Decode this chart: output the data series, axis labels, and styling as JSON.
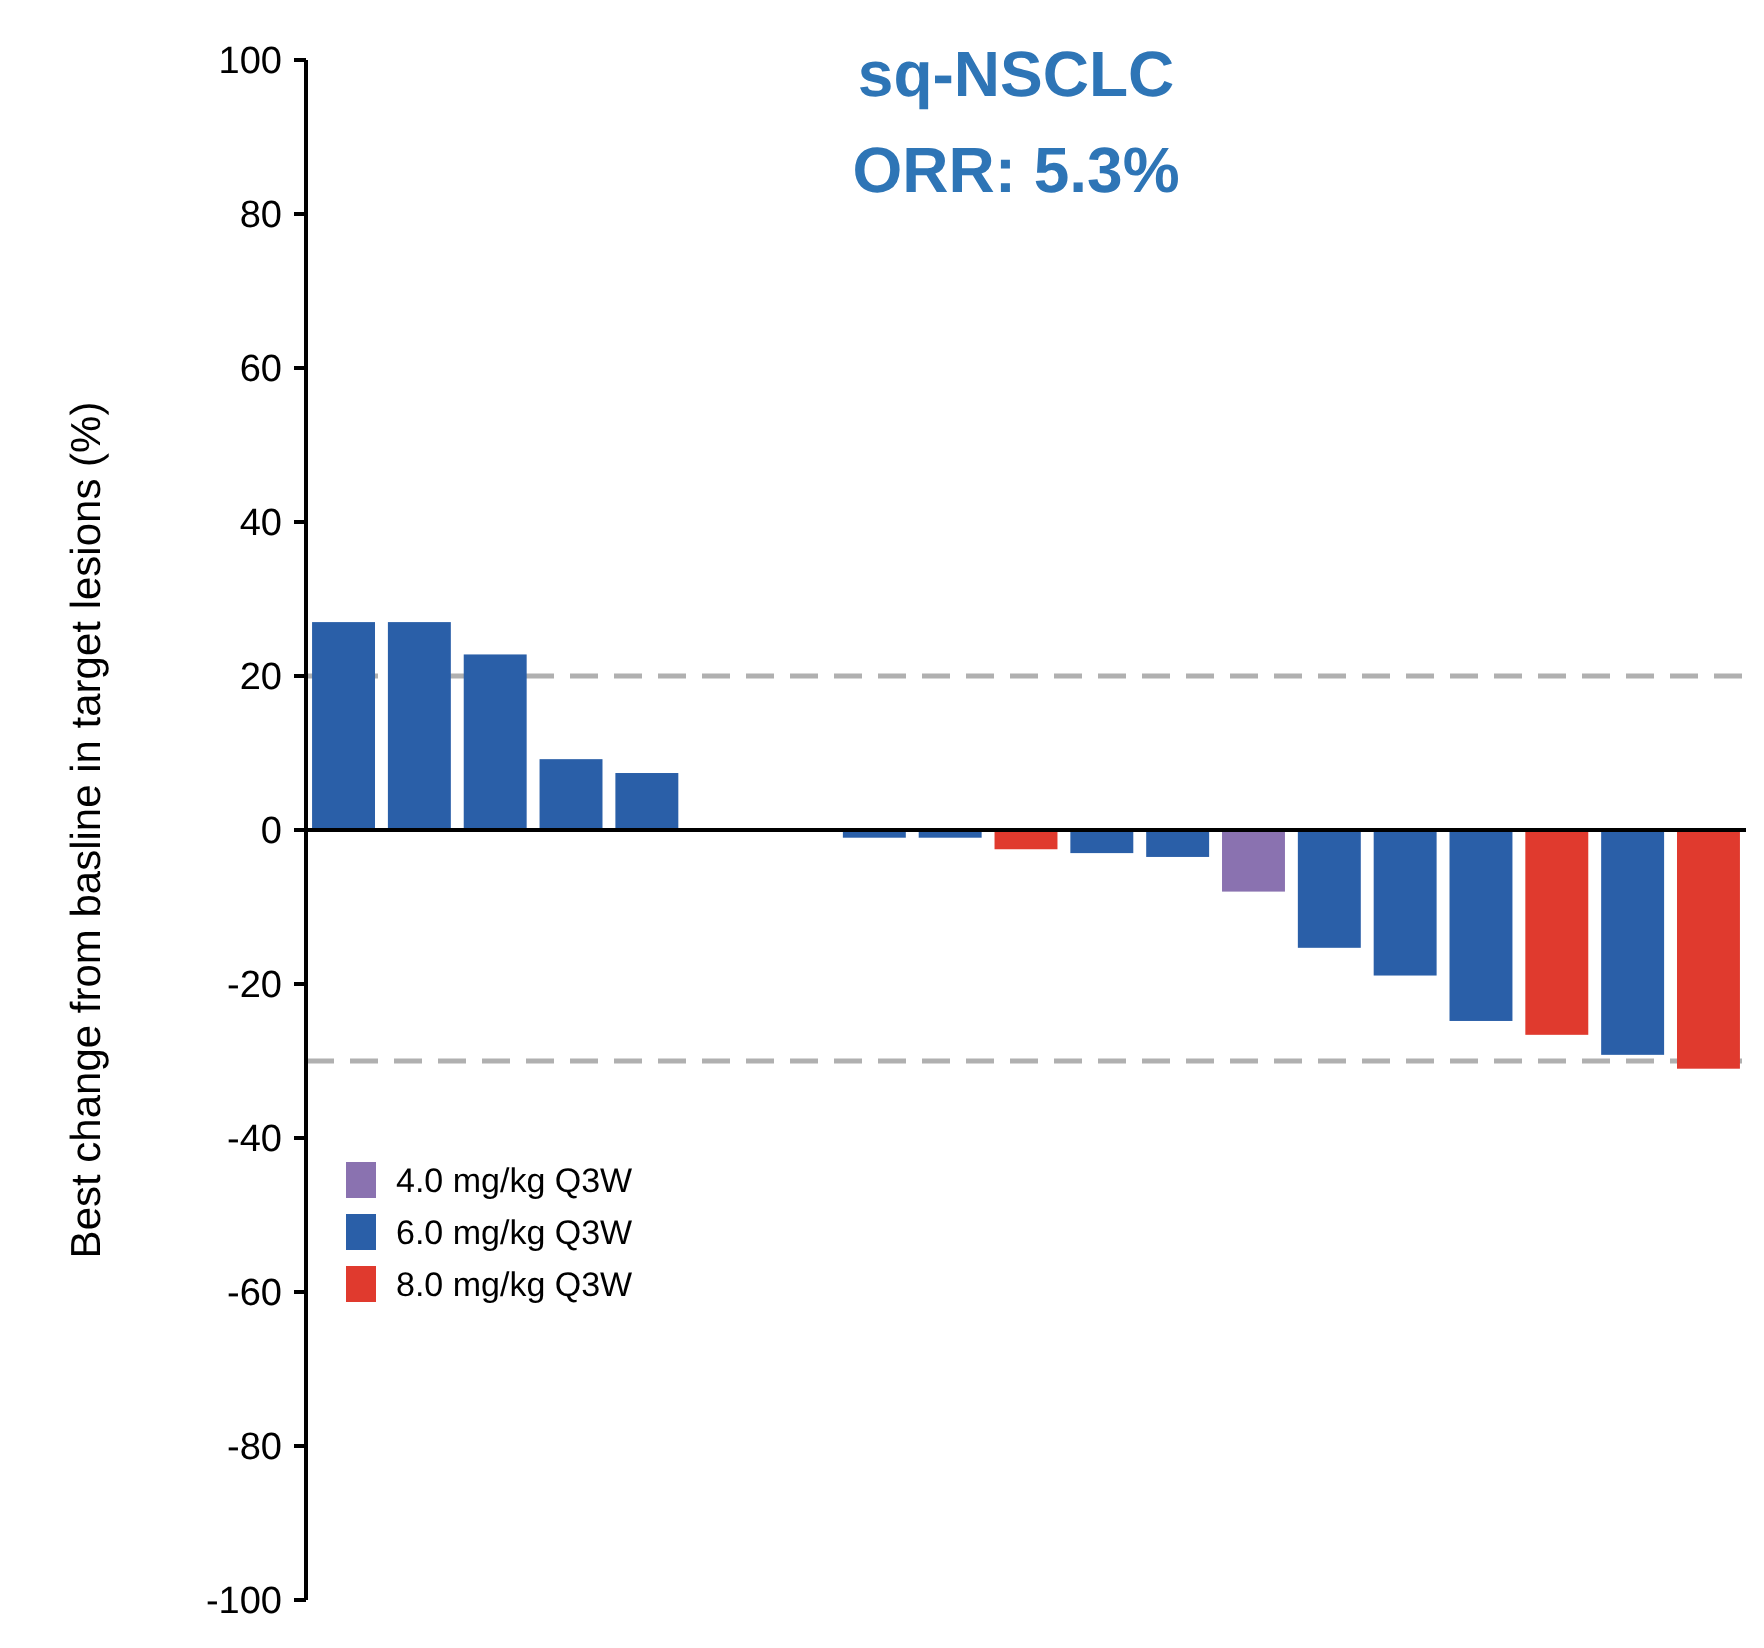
{
  "chart_data": {
    "type": "bar",
    "title": "sq-NSCLC",
    "subtitle": "ORR: 5.3%",
    "ylabel": "Best change from basline in target lesions (%)",
    "categories": [
      null,
      null,
      null,
      null,
      null,
      null,
      null,
      null,
      null,
      null,
      null,
      null,
      null,
      null,
      null,
      null,
      null,
      null,
      null
    ],
    "series": [
      {
        "name": "4.0 mg/kg Q3W",
        "color": "#8a72b0",
        "values": [
          null,
          null,
          null,
          null,
          null,
          null,
          null,
          null,
          null,
          null,
          null,
          null,
          -8,
          null,
          null,
          null,
          null,
          null,
          null
        ]
      },
      {
        "name": "6.0 mg/kg Q3W",
        "color": "#2a5fa8",
        "values": [
          27,
          27,
          22.8,
          9.2,
          7.4,
          0,
          0,
          -1,
          -1,
          null,
          -3,
          -3.5,
          null,
          -15.3,
          -18.9,
          -24.8,
          null,
          -29.2,
          null
        ]
      },
      {
        "name": "8.0 mg/kg Q3W",
        "color": "#e03a2e",
        "values": [
          null,
          null,
          null,
          null,
          null,
          null,
          null,
          null,
          null,
          -2.5,
          null,
          null,
          null,
          null,
          null,
          null,
          -26.6,
          null,
          -31
        ]
      }
    ],
    "ylim": [
      -100,
      100
    ],
    "yticks": [
      -100,
      -80,
      -60,
      -40,
      -20,
      0,
      20,
      40,
      60,
      80,
      100
    ],
    "ref_lines": [
      {
        "axis": "y",
        "value": 20,
        "color": "#b0b0b0",
        "line_style": "dashed"
      },
      {
        "axis": "y",
        "value": -30,
        "color": "#b0b0b0",
        "line_style": "dashed"
      }
    ],
    "tick_labels": "y",
    "legend": "bottom left",
    "grid": false
  }
}
